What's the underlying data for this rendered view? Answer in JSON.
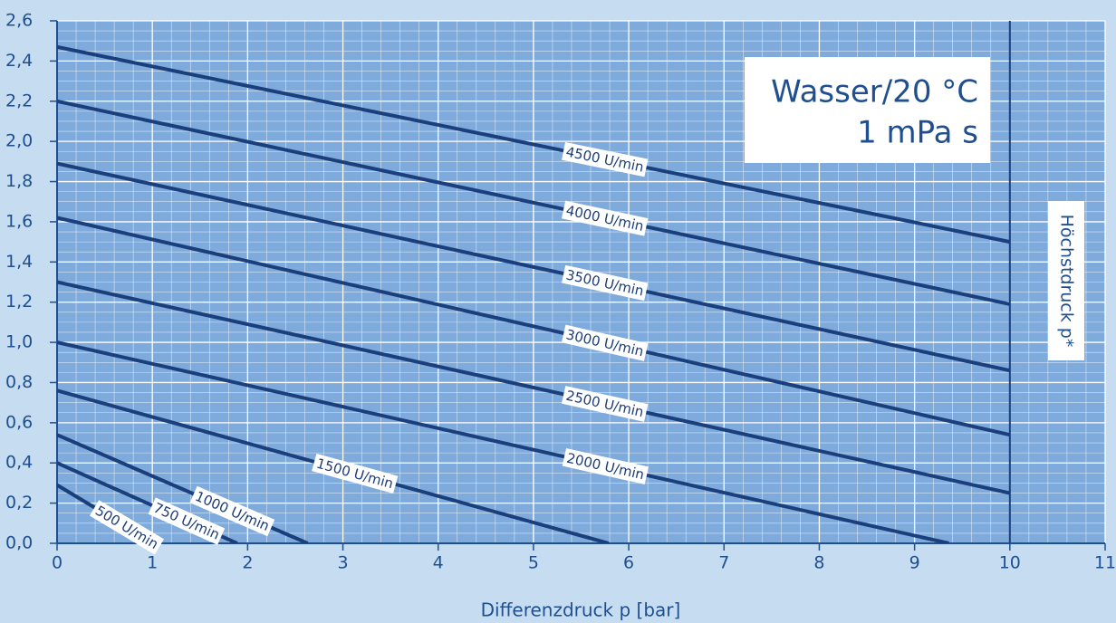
{
  "chart_data": {
    "type": "line",
    "annotations": [
      "Wasser/20 °C",
      "1 mPa s"
    ],
    "vline_label": "Höchstdruck p*",
    "vline": 10,
    "xlabel": "Differenzdruck p [bar]",
    "xlim": [
      0,
      11
    ],
    "xticks": [
      0,
      1,
      2,
      3,
      4,
      5,
      6,
      7,
      8,
      9,
      10,
      11
    ],
    "ylim": [
      0,
      2.6
    ],
    "yticks": [
      {
        "value": 0,
        "label": "0,0"
      },
      {
        "value": 0.2,
        "label": "0,2"
      },
      {
        "value": 0.4,
        "label": "0,4"
      },
      {
        "value": 0.6,
        "label": "0,6"
      },
      {
        "value": 0.8,
        "label": "0,8"
      },
      {
        "value": 1.0,
        "label": "1,0"
      },
      {
        "value": 1.2,
        "label": "1,2"
      },
      {
        "value": 1.4,
        "label": "1,4"
      },
      {
        "value": 1.6,
        "label": "1,6"
      },
      {
        "value": 1.8,
        "label": "1,8"
      },
      {
        "value": 2.0,
        "label": "2,0"
      },
      {
        "value": 2.2,
        "label": "2,2"
      },
      {
        "value": 2.4,
        "label": "2,4"
      },
      {
        "value": 2.6,
        "label": "2,6"
      }
    ],
    "grid": true,
    "series": [
      {
        "name": "4500 U/min",
        "color": "#1b3f7c",
        "x": [
          0,
          10
        ],
        "values": [
          2.47,
          1.5
        ]
      },
      {
        "name": "4000 U/min",
        "color": "#1b3f7c",
        "x": [
          0,
          10
        ],
        "values": [
          2.2,
          1.19
        ]
      },
      {
        "name": "3500 U/min",
        "color": "#1b3f7c",
        "x": [
          0,
          10
        ],
        "values": [
          1.89,
          0.86
        ]
      },
      {
        "name": "3000 U/min",
        "color": "#1b3f7c",
        "x": [
          0,
          10
        ],
        "values": [
          1.62,
          0.54
        ]
      },
      {
        "name": "2500 U/min",
        "color": "#1b3f7c",
        "x": [
          0,
          10
        ],
        "values": [
          1.3,
          0.25
        ]
      },
      {
        "name": "2000 U/min",
        "color": "#1b3f7c",
        "x": [
          0,
          9.36
        ],
        "values": [
          1.0,
          0
        ]
      },
      {
        "name": "1500 U/min",
        "color": "#1b3f7c",
        "x": [
          0,
          5.79
        ],
        "values": [
          0.76,
          0
        ]
      },
      {
        "name": "1000 U/min",
        "color": "#1b3f7c",
        "x": [
          0,
          2.63
        ],
        "values": [
          0.54,
          0
        ]
      },
      {
        "name": "750 U/min",
        "color": "#1b3f7c",
        "x": [
          0,
          1.89
        ],
        "values": [
          0.4,
          0
        ]
      },
      {
        "name": "500 U/min",
        "color": "#1b3f7c",
        "x": [
          0,
          1.02
        ],
        "values": [
          0.29,
          0
        ]
      }
    ]
  }
}
